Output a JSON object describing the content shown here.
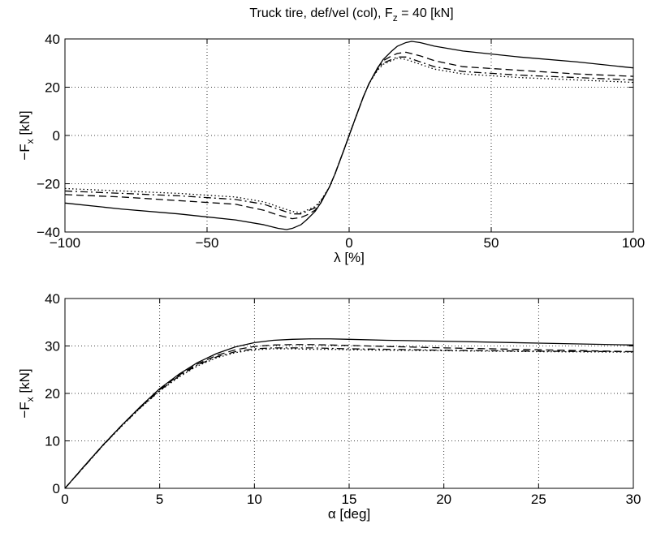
{
  "figure": {
    "title_main": "Truck tire, def/vel (col), F",
    "title_sub": "z",
    "title_tail": " = 40 [kN]"
  },
  "chart_data": [
    {
      "type": "line",
      "xlabel": "λ [%]",
      "ylabel": {
        "main": "−F",
        "sub": "x",
        "tail": " [kN]"
      },
      "xlim": [
        -100,
        100
      ],
      "ylim": [
        -40,
        40
      ],
      "xticks": [
        -100,
        -50,
        0,
        50,
        100
      ],
      "yticks": [
        -40,
        -20,
        0,
        20,
        40
      ],
      "xtick_labels": [
        "−100",
        "−50",
        "0",
        "50",
        "100"
      ],
      "ytick_labels": [
        "−40",
        "−20",
        "0",
        "20",
        "40"
      ],
      "grid": true,
      "series": [
        {
          "style": "solid",
          "x": [
            -100,
            -80,
            -60,
            -40,
            -30,
            -25,
            -22,
            -20,
            -17,
            -15,
            -12,
            -10,
            -7,
            -5,
            -2,
            0,
            2,
            5,
            7,
            10,
            12,
            15,
            17,
            20,
            22,
            25,
            30,
            40,
            60,
            80,
            100
          ],
          "y": [
            -28,
            -30.5,
            -32.5,
            -35,
            -37,
            -38.5,
            -39,
            -38.5,
            -37,
            -35,
            -31.5,
            -28,
            -21.5,
            -16,
            -6.5,
            0,
            6.5,
            16,
            21.5,
            28,
            31.5,
            35,
            37,
            38.5,
            39,
            38.5,
            37,
            35,
            32.5,
            30.5,
            28
          ]
        },
        {
          "style": "dashed",
          "x": [
            -100,
            -80,
            -60,
            -40,
            -30,
            -25,
            -20,
            -17,
            -15,
            -12,
            -10,
            -7,
            -5,
            -2,
            0,
            2,
            5,
            7,
            10,
            12,
            15,
            17,
            20,
            25,
            30,
            40,
            60,
            80,
            100
          ],
          "y": [
            -24.5,
            -25.5,
            -27,
            -28.5,
            -31,
            -33,
            -34.5,
            -34,
            -33,
            -31,
            -28,
            -21.5,
            -16,
            -6.5,
            0,
            6.5,
            16,
            21.5,
            28,
            31,
            33,
            34,
            34.5,
            33,
            31,
            28.5,
            27,
            25.5,
            24.5
          ]
        },
        {
          "style": "dashdot",
          "x": [
            -100,
            -80,
            -60,
            -40,
            -30,
            -25,
            -20,
            -17,
            -15,
            -12,
            -10,
            -7,
            -5,
            -2,
            0,
            2,
            5,
            7,
            10,
            12,
            15,
            17,
            20,
            25,
            30,
            40,
            60,
            80,
            100
          ],
          "y": [
            -23,
            -24,
            -25,
            -26.5,
            -28.5,
            -30.5,
            -32.5,
            -32.5,
            -31.5,
            -30,
            -27.5,
            -21.5,
            -16,
            -6.5,
            0,
            6.5,
            16,
            21.5,
            27.5,
            30,
            31.5,
            32.5,
            32.5,
            30.5,
            28.5,
            26.5,
            25,
            24,
            23
          ]
        },
        {
          "style": "dotted",
          "x": [
            -100,
            -80,
            -60,
            -40,
            -30,
            -25,
            -20,
            -17,
            -15,
            -12,
            -10,
            -7,
            -5,
            -2,
            0,
            2,
            5,
            7,
            10,
            12,
            15,
            17,
            20,
            25,
            30,
            40,
            60,
            80,
            100
          ],
          "y": [
            -22,
            -23,
            -24,
            -25.5,
            -27.5,
            -29.5,
            -31.5,
            -32,
            -31,
            -29.5,
            -27,
            -21.5,
            -16,
            -6.5,
            0,
            6.5,
            16,
            21.5,
            27,
            29.5,
            31,
            32,
            31.5,
            29.5,
            27.5,
            25.5,
            24,
            23,
            22
          ]
        }
      ]
    },
    {
      "type": "line",
      "xlabel": "α [deg]",
      "ylabel": {
        "main": "−F",
        "sub": "x",
        "tail": " [kN]"
      },
      "xlim": [
        0,
        30
      ],
      "ylim": [
        0,
        40
      ],
      "xticks": [
        0,
        5,
        10,
        15,
        20,
        25,
        30
      ],
      "yticks": [
        0,
        10,
        20,
        30,
        40
      ],
      "xtick_labels": [
        "0",
        "5",
        "10",
        "15",
        "20",
        "25",
        "30"
      ],
      "ytick_labels": [
        "0",
        "10",
        "20",
        "30",
        "40"
      ],
      "grid": true,
      "series": [
        {
          "style": "solid",
          "x": [
            0,
            1,
            2,
            3,
            4,
            5,
            6,
            7,
            8,
            9,
            10,
            11,
            12,
            13,
            14,
            15,
            17,
            20,
            25,
            30
          ],
          "y": [
            0,
            4.6,
            9.1,
            13.3,
            17.3,
            21,
            24,
            26.5,
            28.4,
            29.8,
            30.7,
            31.2,
            31.4,
            31.5,
            31.5,
            31.4,
            31.2,
            31,
            30.6,
            30.2
          ]
        },
        {
          "style": "dashed",
          "x": [
            0,
            1,
            2,
            3,
            4,
            5,
            6,
            7,
            8,
            9,
            10,
            11,
            12,
            13,
            14,
            15,
            17,
            20,
            25,
            30
          ],
          "y": [
            0,
            4.6,
            9.1,
            13.3,
            17.2,
            20.8,
            23.8,
            26.2,
            28,
            29.2,
            29.9,
            30.2,
            30.3,
            30.3,
            30.2,
            30.1,
            29.9,
            29.6,
            29.2,
            28.8
          ]
        },
        {
          "style": "dashdot",
          "x": [
            0,
            1,
            2,
            3,
            4,
            5,
            6,
            7,
            8,
            9,
            10,
            11,
            12,
            13,
            14,
            15,
            17,
            20,
            25,
            30
          ],
          "y": [
            0,
            4.5,
            9,
            13.2,
            17.1,
            20.6,
            23.6,
            26,
            27.7,
            28.8,
            29.4,
            29.6,
            29.6,
            29.6,
            29.5,
            29.4,
            29.3,
            29.1,
            28.9,
            28.8
          ]
        },
        {
          "style": "dotted",
          "x": [
            0,
            1,
            2,
            3,
            4,
            5,
            6,
            7,
            8,
            9,
            10,
            11,
            12,
            13,
            14,
            15,
            17,
            20,
            25,
            30
          ],
          "y": [
            0,
            4.5,
            9,
            13.1,
            17,
            20.5,
            23.4,
            25.8,
            27.5,
            28.6,
            29.2,
            29.4,
            29.4,
            29.3,
            29.3,
            29.2,
            29.1,
            29,
            28.8,
            28.7
          ]
        }
      ]
    }
  ]
}
